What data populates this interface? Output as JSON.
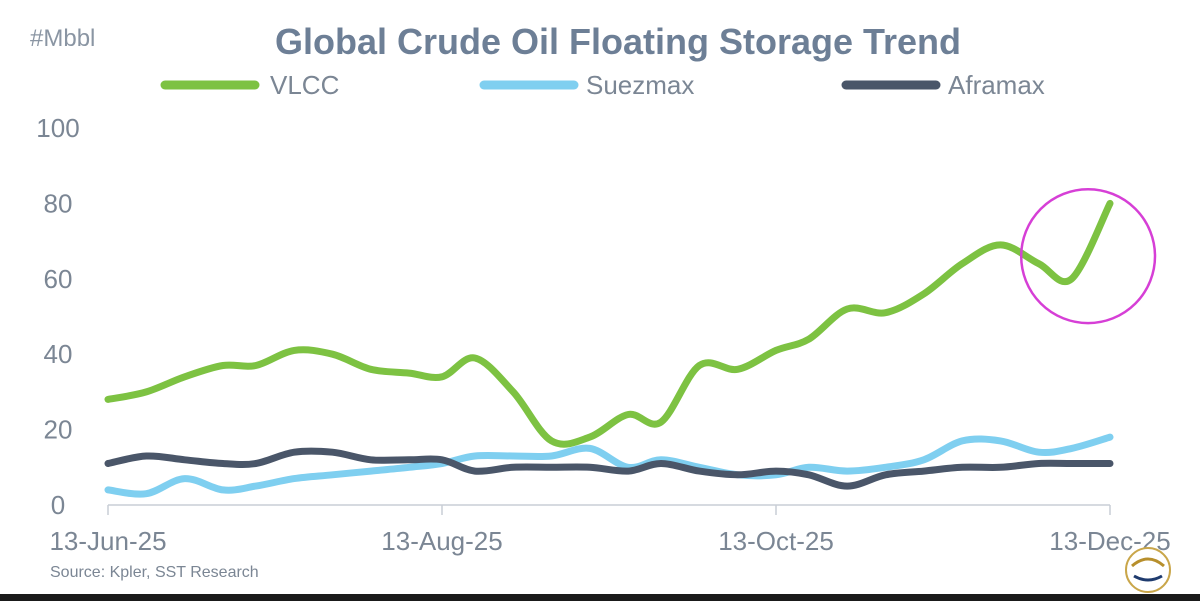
{
  "chart_data": {
    "type": "line",
    "title": "Global Crude Oil Floating Storage Trend",
    "unit_label": "#Mbbl",
    "source": "Source: Kpler, SST Research",
    "ylim": [
      0,
      100
    ],
    "y_ticks": [
      0,
      20,
      40,
      60,
      80,
      100
    ],
    "x_range": [
      "2025-06-13",
      "2025-12-13"
    ],
    "x_tick_labels": [
      "13-Jun-25",
      "13-Aug-25",
      "13-Oct-25",
      "13-Dec-25"
    ],
    "x_tick_dates": [
      "2025-06-13",
      "2025-08-13",
      "2025-10-13",
      "2025-12-13"
    ],
    "legend_placement": "top",
    "grid": false,
    "series": [
      {
        "name": "VLCC",
        "color": "#7dc242",
        "points": [
          [
            "2025-06-13",
            28
          ],
          [
            "2025-06-20",
            30
          ],
          [
            "2025-06-27",
            34
          ],
          [
            "2025-07-04",
            37
          ],
          [
            "2025-07-10",
            37
          ],
          [
            "2025-07-17",
            41
          ],
          [
            "2025-07-24",
            40
          ],
          [
            "2025-07-31",
            36
          ],
          [
            "2025-08-07",
            35
          ],
          [
            "2025-08-13",
            34
          ],
          [
            "2025-08-19",
            39
          ],
          [
            "2025-08-26",
            30
          ],
          [
            "2025-09-02",
            17
          ],
          [
            "2025-09-09",
            18
          ],
          [
            "2025-09-16",
            24
          ],
          [
            "2025-09-22",
            22
          ],
          [
            "2025-09-29",
            37
          ],
          [
            "2025-10-06",
            36
          ],
          [
            "2025-10-13",
            41
          ],
          [
            "2025-10-19",
            44
          ],
          [
            "2025-10-26",
            52
          ],
          [
            "2025-11-02",
            51
          ],
          [
            "2025-11-09",
            56
          ],
          [
            "2025-11-16",
            64
          ],
          [
            "2025-11-23",
            69
          ],
          [
            "2025-11-30",
            64
          ],
          [
            "2025-12-06",
            60
          ],
          [
            "2025-12-13",
            80
          ]
        ]
      },
      {
        "name": "Suezmax",
        "color": "#7fcff0",
        "points": [
          [
            "2025-06-13",
            4
          ],
          [
            "2025-06-20",
            3
          ],
          [
            "2025-06-27",
            7
          ],
          [
            "2025-07-04",
            4
          ],
          [
            "2025-07-10",
            5
          ],
          [
            "2025-07-17",
            7
          ],
          [
            "2025-07-24",
            8
          ],
          [
            "2025-07-31",
            9
          ],
          [
            "2025-08-07",
            10
          ],
          [
            "2025-08-13",
            11
          ],
          [
            "2025-08-19",
            13
          ],
          [
            "2025-08-26",
            13
          ],
          [
            "2025-09-02",
            13
          ],
          [
            "2025-09-09",
            15
          ],
          [
            "2025-09-16",
            10
          ],
          [
            "2025-09-22",
            12
          ],
          [
            "2025-09-29",
            10
          ],
          [
            "2025-10-06",
            8
          ],
          [
            "2025-10-13",
            8
          ],
          [
            "2025-10-19",
            10
          ],
          [
            "2025-10-26",
            9
          ],
          [
            "2025-11-02",
            10
          ],
          [
            "2025-11-09",
            12
          ],
          [
            "2025-11-16",
            17
          ],
          [
            "2025-11-23",
            17
          ],
          [
            "2025-11-30",
            14
          ],
          [
            "2025-12-06",
            15
          ],
          [
            "2025-12-13",
            18
          ]
        ]
      },
      {
        "name": "Aframax",
        "color": "#4a5669",
        "points": [
          [
            "2025-06-13",
            11
          ],
          [
            "2025-06-20",
            13
          ],
          [
            "2025-06-27",
            12
          ],
          [
            "2025-07-04",
            11
          ],
          [
            "2025-07-10",
            11
          ],
          [
            "2025-07-17",
            14
          ],
          [
            "2025-07-24",
            14
          ],
          [
            "2025-07-31",
            12
          ],
          [
            "2025-08-07",
            12
          ],
          [
            "2025-08-13",
            12
          ],
          [
            "2025-08-19",
            9
          ],
          [
            "2025-08-26",
            10
          ],
          [
            "2025-09-02",
            10
          ],
          [
            "2025-09-09",
            10
          ],
          [
            "2025-09-16",
            9
          ],
          [
            "2025-09-22",
            11
          ],
          [
            "2025-09-29",
            9
          ],
          [
            "2025-10-06",
            8
          ],
          [
            "2025-10-13",
            9
          ],
          [
            "2025-10-19",
            8
          ],
          [
            "2025-10-26",
            5
          ],
          [
            "2025-11-02",
            8
          ],
          [
            "2025-11-09",
            9
          ],
          [
            "2025-11-16",
            10
          ],
          [
            "2025-11-23",
            10
          ],
          [
            "2025-11-30",
            11
          ],
          [
            "2025-12-06",
            11
          ],
          [
            "2025-12-13",
            11
          ]
        ]
      }
    ],
    "annotation": {
      "shape": "circle",
      "color": "#d63fd6",
      "center": [
        "2025-12-09",
        66
      ],
      "radius_days": 13
    }
  }
}
